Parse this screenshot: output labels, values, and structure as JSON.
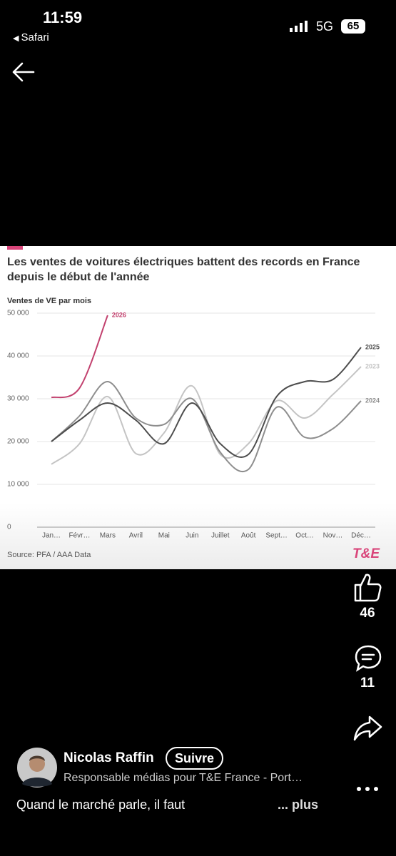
{
  "status_bar": {
    "time": "11:59",
    "back_app": "Safari",
    "network": "5G",
    "battery": 65
  },
  "chart_data": {
    "type": "line",
    "title": "Les ventes de voitures électriques battent des records en France depuis le début de l'année",
    "y_label": "Ventes de VE par mois",
    "categories": [
      "Jan…",
      "Févr…",
      "Mars",
      "Avril",
      "Mai",
      "Juin",
      "Juillet",
      "Août",
      "Sept…",
      "Oct…",
      "Nov…",
      "Déc…"
    ],
    "series": [
      {
        "name": "2023",
        "color": "#c4c4c4",
        "values": [
          14700,
          19500,
          30500,
          17200,
          22000,
          33000,
          17000,
          19500,
          29500,
          25500,
          31000,
          37500
        ]
      },
      {
        "name": "2024",
        "color": "#8e8e8e",
        "values": [
          20000,
          26000,
          34000,
          25500,
          24000,
          30000,
          17500,
          13500,
          28000,
          21000,
          23000,
          29500
        ]
      },
      {
        "name": "2025",
        "color": "#4d4d4d",
        "values": [
          20000,
          25000,
          29000,
          25000,
          19500,
          29000,
          19500,
          17000,
          30500,
          34000,
          34500,
          42000
        ]
      },
      {
        "name": "2026",
        "color": "#c2416e",
        "values": [
          30300,
          32500,
          49500,
          null,
          null,
          null,
          null,
          null,
          null,
          null,
          null,
          null
        ]
      }
    ],
    "ylim": [
      0,
      50000
    ],
    "yticks": [
      0,
      {
        "value": 10000,
        "label": "10 000"
      },
      {
        "value": 20000,
        "label": "20 000"
      },
      {
        "value": 30000,
        "label": "30 000"
      },
      {
        "value": 40000,
        "label": "40 000"
      },
      {
        "value": 50000,
        "label": "50 000"
      }
    ],
    "grid": true,
    "source": "Source: PFA / AAA Data",
    "logo": "T&E"
  },
  "actions": {
    "likes": 46,
    "comments": 11
  },
  "post": {
    "author": "Nicolas Raffin",
    "follow": "Suivre",
    "headline": "Responsable médias pour T&E France - Port…",
    "text": "Quand le marché parle, il faut",
    "more": "... plus"
  }
}
